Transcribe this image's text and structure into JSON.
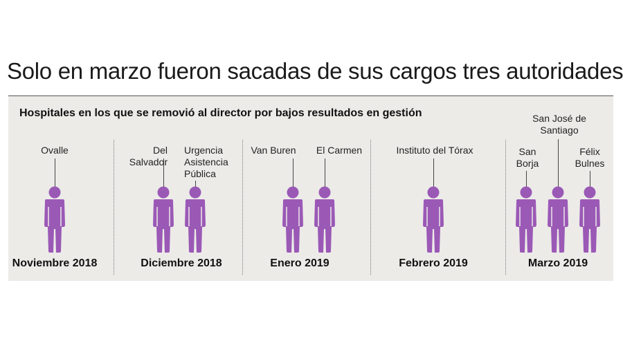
{
  "title": "Solo en marzo fueron sacadas de sus cargos tres autoridades",
  "subtitle": "Hospitales en los que se removió al director por bajos resultados en gestión",
  "figure_color": "#9b59b6",
  "months": [
    "Noviembre 2018",
    "Diciembre 2018",
    "Enero 2019",
    "Febrero 2019",
    "Marzo 2019"
  ],
  "hospitals": {
    "ovalle": "Ovalle",
    "del_salvador": [
      "Del",
      "Salvador"
    ],
    "urgencia": [
      "Urgencia",
      "Asistencia",
      "Pública"
    ],
    "van_buren": "Van Buren",
    "el_carmen": "El Carmen",
    "instituto": "Instituto del Tórax",
    "san_borja": [
      "San",
      "Borja"
    ],
    "san_jose": [
      "San José de",
      "Santiago"
    ],
    "felix_bulnes": [
      "Félix",
      "Bulnes"
    ]
  }
}
